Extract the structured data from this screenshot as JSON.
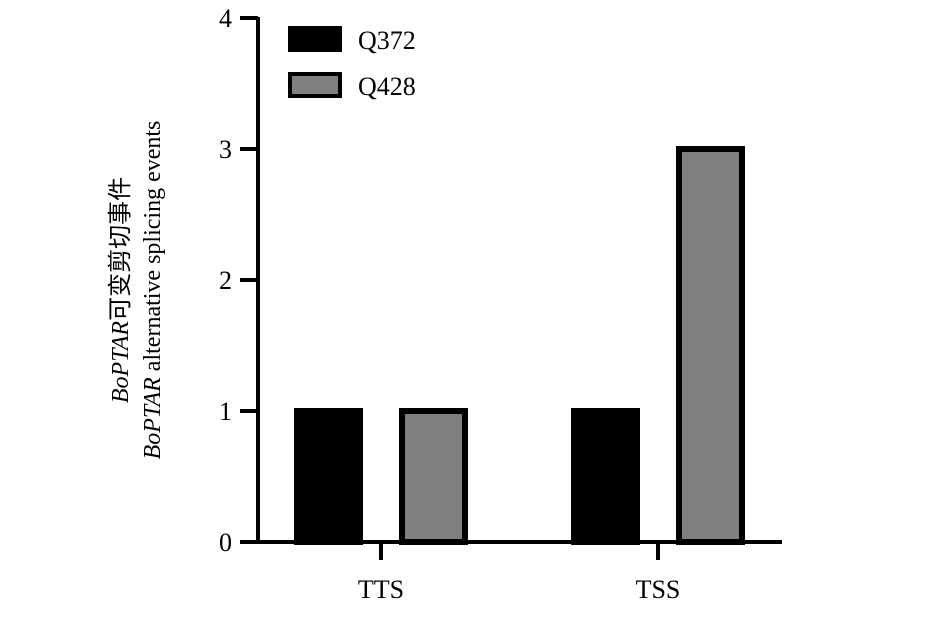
{
  "chart_data": {
    "type": "bar",
    "categories": [
      "TTS",
      "TSS"
    ],
    "series": [
      {
        "name": "Q372",
        "values": [
          1,
          1
        ],
        "color": "#000000"
      },
      {
        "name": "Q428",
        "values": [
          1,
          3
        ],
        "color": "#808080"
      }
    ],
    "ylabel_line1_italic": "BoPTAR",
    "ylabel_line1_rest": "可变剪切事件",
    "ylabel_line2_italic": "BoPTAR",
    "ylabel_line2_rest": " alternative splicing events",
    "ylim": [
      0,
      4
    ],
    "yticks": [
      0,
      1,
      2,
      3,
      4
    ],
    "grid": false,
    "legend_position": "top-left"
  }
}
